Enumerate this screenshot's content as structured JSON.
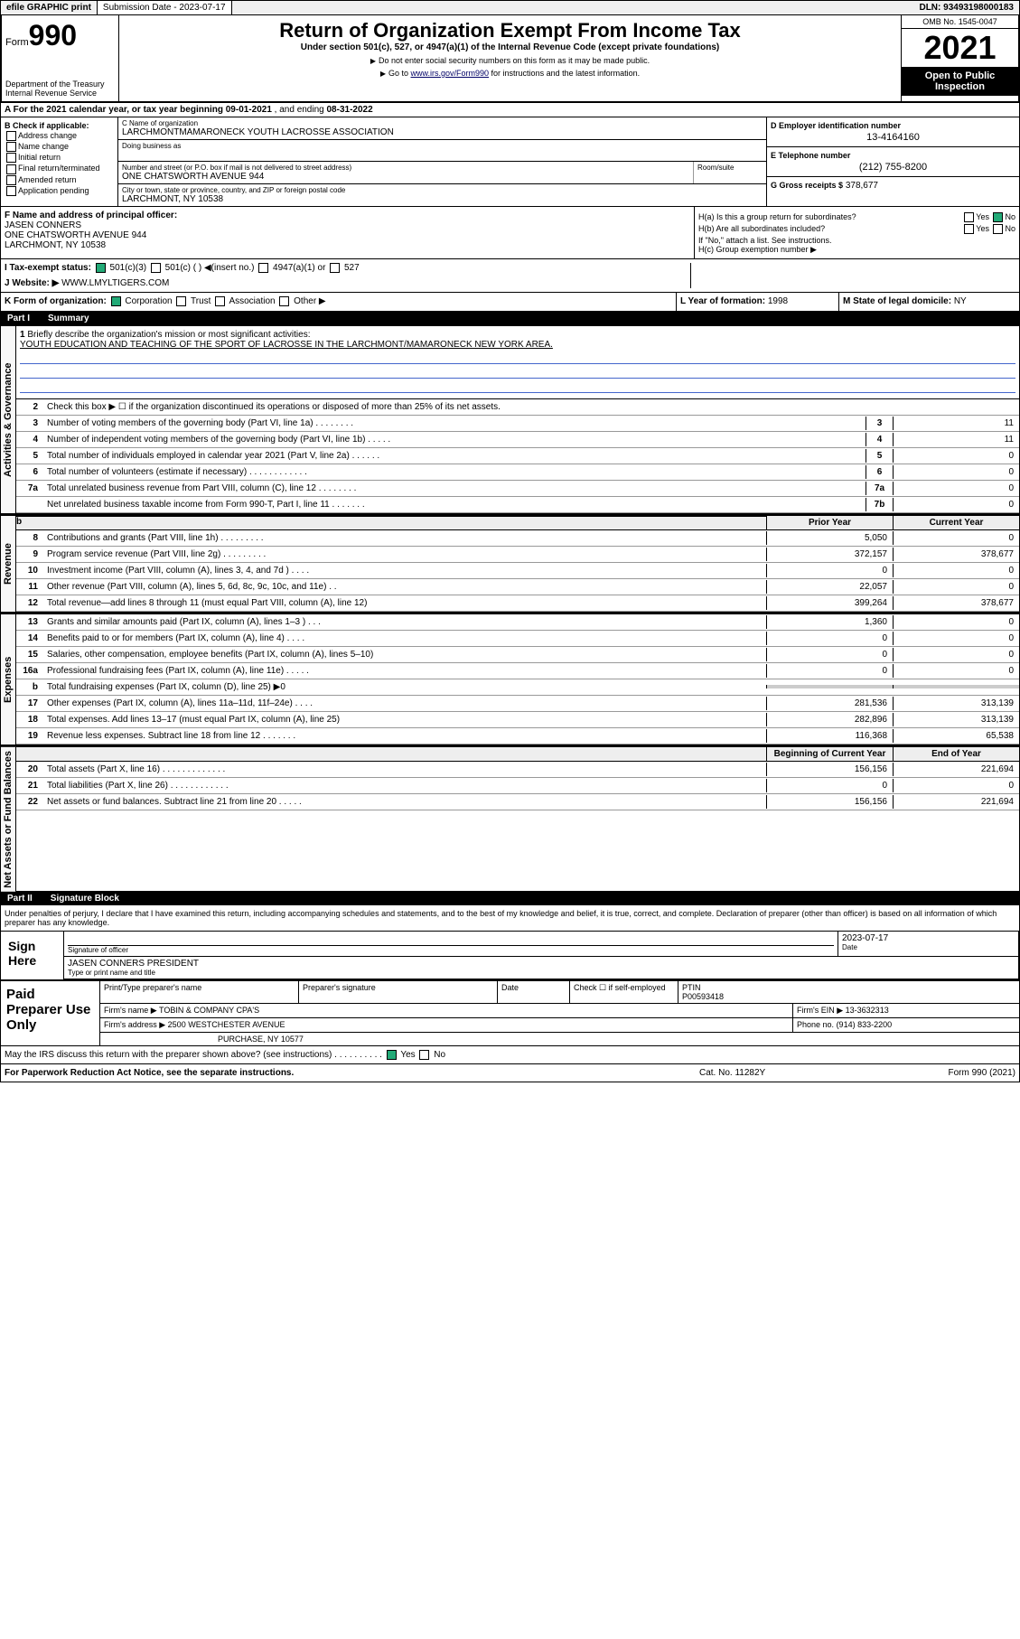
{
  "topbar": {
    "efile": "efile GRAPHIC print",
    "subdate_label": "Submission Date - 2023-07-17",
    "dln": "DLN: 93493198000183"
  },
  "header": {
    "form_label": "Form",
    "form_num": "990",
    "dept": "Department of the Treasury\nInternal Revenue Service",
    "title": "Return of Organization Exempt From Income Tax",
    "sub": "Under section 501(c), 527, or 4947(a)(1) of the Internal Revenue Code (except private foundations)",
    "note1": "Do not enter social security numbers on this form as it may be made public.",
    "note2_pre": "Go to ",
    "note2_link": "www.irs.gov/Form990",
    "note2_post": " for instructions and the latest information.",
    "omb": "OMB No. 1545-0047",
    "year": "2021",
    "inspection": "Open to Public Inspection"
  },
  "row_a": {
    "label": "A For the 2021 calendar year, or tax year beginning ",
    "begin": "09-01-2021",
    "mid": " , and ending ",
    "end": "08-31-2022"
  },
  "col_b": {
    "label": "B Check if applicable:",
    "opts": [
      "Address change",
      "Name change",
      "Initial return",
      "Final return/terminated",
      "Amended return",
      "Application pending"
    ]
  },
  "col_c": {
    "name_label": "C Name of organization",
    "name": "LARCHMONTMAMARONECK YOUTH LACROSSE ASSOCIATION",
    "dba_label": "Doing business as",
    "addr_label": "Number and street (or P.O. box if mail is not delivered to street address)",
    "addr": "ONE CHATSWORTH AVENUE 944",
    "room_label": "Room/suite",
    "city_label": "City or town, state or province, country, and ZIP or foreign postal code",
    "city": "LARCHMONT, NY  10538"
  },
  "col_d": {
    "ein_label": "D Employer identification number",
    "ein": "13-4164160",
    "phone_label": "E Telephone number",
    "phone": "(212) 755-8200",
    "gross_label": "G Gross receipts $",
    "gross": "378,677"
  },
  "col_f": {
    "label": "F  Name and address of principal officer:",
    "name": "JASEN CONNERS",
    "addr1": "ONE CHATSWORTH AVENUE 944",
    "addr2": "LARCHMONT, NY  10538"
  },
  "col_h": {
    "ha_label": "H(a)  Is this a group return for subordinates?",
    "ha_val": "No",
    "hb_label": "H(b)  Are all subordinates included?",
    "hb_note": "If \"No,\" attach a list. See instructions.",
    "hc_label": "H(c)  Group exemption number ▶"
  },
  "status": {
    "label": "I  Tax-exempt status:",
    "opt1": "501(c)(3)",
    "opt2": "501(c) (  ) ◀(insert no.)",
    "opt3": "4947(a)(1) or",
    "opt4": "527"
  },
  "website": {
    "label": "J  Website: ▶",
    "val": "WWW.LMYLTIGERS.COM"
  },
  "row_k": {
    "k_label": "K Form of organization:",
    "k_opts": [
      "Corporation",
      "Trust",
      "Association",
      "Other ▶"
    ],
    "l_label": "L Year of formation:",
    "l_val": "1998",
    "m_label": "M State of legal domicile:",
    "m_val": "NY"
  },
  "part1": {
    "partnum": "Part I",
    "title": "Summary"
  },
  "mission": {
    "num": "1",
    "label": "Briefly describe the organization's mission or most significant activities:",
    "text": "YOUTH EDUCATION AND TEACHING OF THE SPORT OF LACROSSE IN THE LARCHMONT/MAMARONECK NEW YORK AREA."
  },
  "line2": {
    "num": "2",
    "desc": "Check this box ▶ ☐  if the organization discontinued its operations or disposed of more than 25% of its net assets."
  },
  "governance_lines": [
    {
      "num": "3",
      "desc": "Number of voting members of the governing body (Part VI, line 1a)   .   .   .   .   .   .   .   .",
      "box": "3",
      "val": "11"
    },
    {
      "num": "4",
      "desc": "Number of independent voting members of the governing body (Part VI, line 1b)   .   .   .   .   .",
      "box": "4",
      "val": "11"
    },
    {
      "num": "5",
      "desc": "Total number of individuals employed in calendar year 2021 (Part V, line 2a)   .   .   .   .   .   .",
      "box": "5",
      "val": "0"
    },
    {
      "num": "6",
      "desc": "Total number of volunteers (estimate if necessary)   .   .   .   .   .   .   .   .   .   .   .   .",
      "box": "6",
      "val": "0"
    },
    {
      "num": "7a",
      "desc": "Total unrelated business revenue from Part VIII, column (C), line 12   .   .   .   .   .   .   .   .",
      "box": "7a",
      "val": "0"
    },
    {
      "num": "",
      "desc": "Net unrelated business taxable income from Form 990-T, Part I, line 11   .   .   .   .   .   .   .",
      "box": "7b",
      "val": "0"
    }
  ],
  "col_hdr": {
    "prior": "Prior Year",
    "current": "Current Year"
  },
  "revenue_lines": [
    {
      "num": "8",
      "desc": "Contributions and grants (Part VIII, line 1h)   .   .   .   .   .   .   .   .   .",
      "p": "5,050",
      "c": "0"
    },
    {
      "num": "9",
      "desc": "Program service revenue (Part VIII, line 2g)   .   .   .   .   .   .   .   .   .",
      "p": "372,157",
      "c": "378,677"
    },
    {
      "num": "10",
      "desc": "Investment income (Part VIII, column (A), lines 3, 4, and 7d )   .   .   .   .",
      "p": "0",
      "c": "0"
    },
    {
      "num": "11",
      "desc": "Other revenue (Part VIII, column (A), lines 5, 6d, 8c, 9c, 10c, and 11e)   .   .",
      "p": "22,057",
      "c": "0"
    },
    {
      "num": "12",
      "desc": "Total revenue—add lines 8 through 11 (must equal Part VIII, column (A), line 12)",
      "p": "399,264",
      "c": "378,677"
    }
  ],
  "expense_lines": [
    {
      "num": "13",
      "desc": "Grants and similar amounts paid (Part IX, column (A), lines 1–3 )   .   .   .",
      "p": "1,360",
      "c": "0"
    },
    {
      "num": "14",
      "desc": "Benefits paid to or for members (Part IX, column (A), line 4)   .   .   .   .",
      "p": "0",
      "c": "0"
    },
    {
      "num": "15",
      "desc": "Salaries, other compensation, employee benefits (Part IX, column (A), lines 5–10)",
      "p": "0",
      "c": "0"
    },
    {
      "num": "16a",
      "desc": "Professional fundraising fees (Part IX, column (A), line 11e)   .   .   .   .   .",
      "p": "0",
      "c": "0"
    },
    {
      "num": "b",
      "desc": "Total fundraising expenses (Part IX, column (D), line 25) ▶0",
      "p": "",
      "c": "",
      "shade": true
    },
    {
      "num": "17",
      "desc": "Other expenses (Part IX, column (A), lines 11a–11d, 11f–24e)   .   .   .   .",
      "p": "281,536",
      "c": "313,139"
    },
    {
      "num": "18",
      "desc": "Total expenses. Add lines 13–17 (must equal Part IX, column (A), line 25)",
      "p": "282,896",
      "c": "313,139"
    },
    {
      "num": "19",
      "desc": "Revenue less expenses. Subtract line 18 from line 12   .   .   .   .   .   .   .",
      "p": "116,368",
      "c": "65,538"
    }
  ],
  "net_hdr": {
    "begin": "Beginning of Current Year",
    "end": "End of Year"
  },
  "net_lines": [
    {
      "num": "20",
      "desc": "Total assets (Part X, line 16)   .   .   .   .   .   .   .   .   .   .   .   .   .",
      "p": "156,156",
      "c": "221,694"
    },
    {
      "num": "21",
      "desc": "Total liabilities (Part X, line 26)   .   .   .   .   .   .   .   .   .   .   .   .",
      "p": "0",
      "c": "0"
    },
    {
      "num": "22",
      "desc": "Net assets or fund balances. Subtract line 21 from line 20   .   .   .   .   .",
      "p": "156,156",
      "c": "221,694"
    }
  ],
  "part2": {
    "partnum": "Part II",
    "title": "Signature Block"
  },
  "sig": {
    "decl": "Under penalties of perjury, I declare that I have examined this return, including accompanying schedules and statements, and to the best of my knowledge and belief, it is true, correct, and complete. Declaration of preparer (other than officer) is based on all information of which preparer has any knowledge.",
    "sign_here": "Sign Here",
    "sig_officer": "Signature of officer",
    "date_label": "Date",
    "date": "2023-07-17",
    "name": "JASEN CONNERS PRESIDENT",
    "name_label": "Type or print name and title"
  },
  "paid": {
    "label": "Paid Preparer Use Only",
    "col1": "Print/Type preparer's name",
    "col2": "Preparer's signature",
    "col3": "Date",
    "col4_chk": "Check ☐ if self-employed",
    "col5_label": "PTIN",
    "col5": "P00593418",
    "firm_label": "Firm's name    ▶",
    "firm": "TOBIN & COMPANY CPA'S",
    "ein_label": "Firm's EIN ▶",
    "ein": "13-3632313",
    "addr_label": "Firm's address ▶",
    "addr1": "2500 WESTCHESTER AVENUE",
    "addr2": "PURCHASE, NY 10577",
    "phone_label": "Phone no.",
    "phone": "(914) 833-2200"
  },
  "discuss": {
    "text": "May the IRS discuss this return with the preparer shown above? (see instructions)   .   .   .   .   .   .   .   .   .   .",
    "yes": "Yes",
    "no": "No"
  },
  "footer": {
    "left": "For Paperwork Reduction Act Notice, see the separate instructions.",
    "mid": "Cat. No. 11282Y",
    "right": "Form 990 (2021)"
  },
  "vtabs": {
    "gov": "Activities & Governance",
    "rev": "Revenue",
    "exp": "Expenses",
    "net": "Net Assets or Fund Balances"
  }
}
